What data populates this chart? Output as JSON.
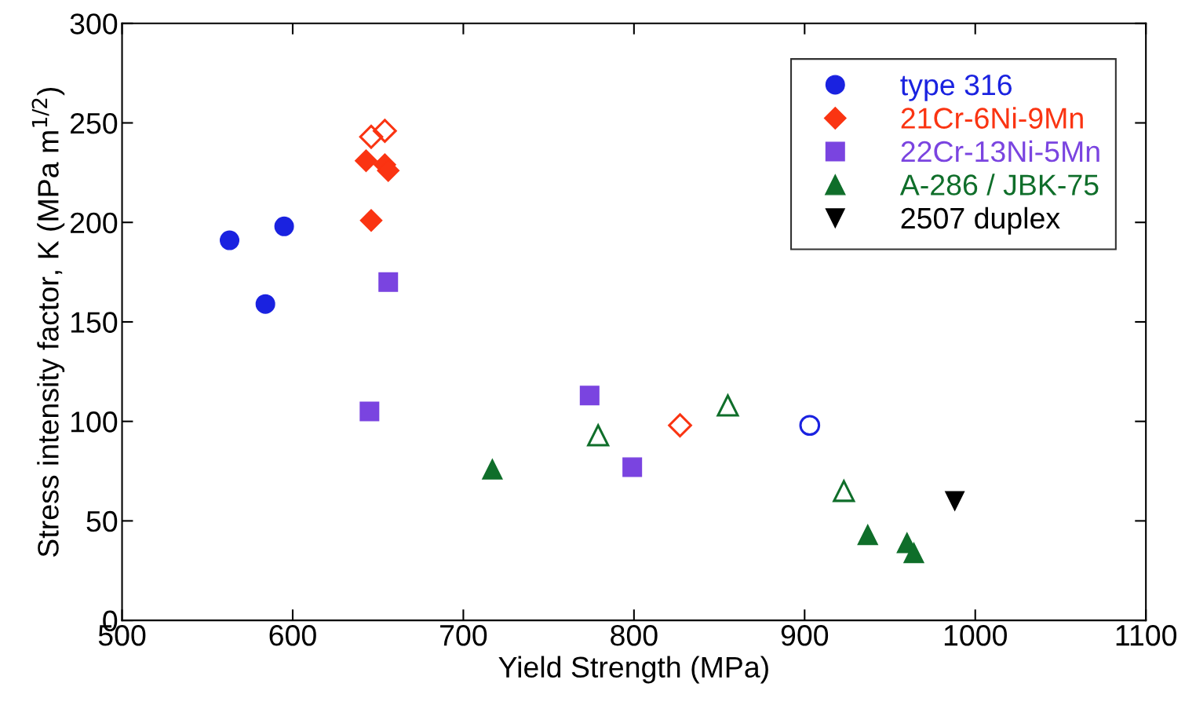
{
  "chart_data": {
    "type": "scatter",
    "xlabel": "Yield Strength (MPa)",
    "ylabel": "Stress intensity factor, K (MPa m$^{1/2}$)",
    "xlim": [
      500,
      1100
    ],
    "xticks": [
      500,
      600,
      700,
      800,
      900,
      1000,
      1100
    ],
    "ylim": [
      0,
      300
    ],
    "yticks": [
      0,
      50,
      100,
      150,
      200,
      250,
      300
    ],
    "grid": false,
    "legend": "top right",
    "series": [
      {
        "name": "type 316",
        "color": "#1a22e0",
        "marker": "circle",
        "x": [
          563,
          595,
          584
        ],
        "values": [
          191,
          198,
          159
        ]
      },
      {
        "name": "21Cr-6Ni-9Mn",
        "color": "#fa3412",
        "marker": "diamond",
        "x": [
          643,
          654,
          656,
          646
        ],
        "values": [
          231,
          229,
          226,
          201
        ]
      },
      {
        "name": "22Cr-13Ni-5Mn",
        "color": "#7a44e0",
        "marker": "square",
        "x": [
          656,
          645,
          774,
          799
        ],
        "values": [
          170,
          105,
          113,
          77
        ]
      },
      {
        "name": "A-286 / JBK-75",
        "color": "#0f6e2a",
        "marker": "triangle",
        "x": [
          717,
          937,
          960,
          964
        ],
        "values": [
          76,
          43,
          39,
          34
        ]
      },
      {
        "name": "2507 duplex",
        "color": "#000000",
        "marker": "triangle_down",
        "x": [
          988
        ],
        "values": [
          60
        ]
      },
      {
        "color": "#1a22e0",
        "marker": "circle",
        "x": [
          903
        ],
        "values": [
          98
        ]
      },
      {
        "color": "#fa3412",
        "marker": "diamond",
        "x": [
          646,
          654,
          827
        ],
        "values": [
          243,
          246,
          98
        ]
      },
      {
        "color": "#0f6e2a",
        "marker": "triangle",
        "x": [
          779,
          855,
          923
        ],
        "values": [
          93,
          108,
          65
        ]
      }
    ]
  }
}
